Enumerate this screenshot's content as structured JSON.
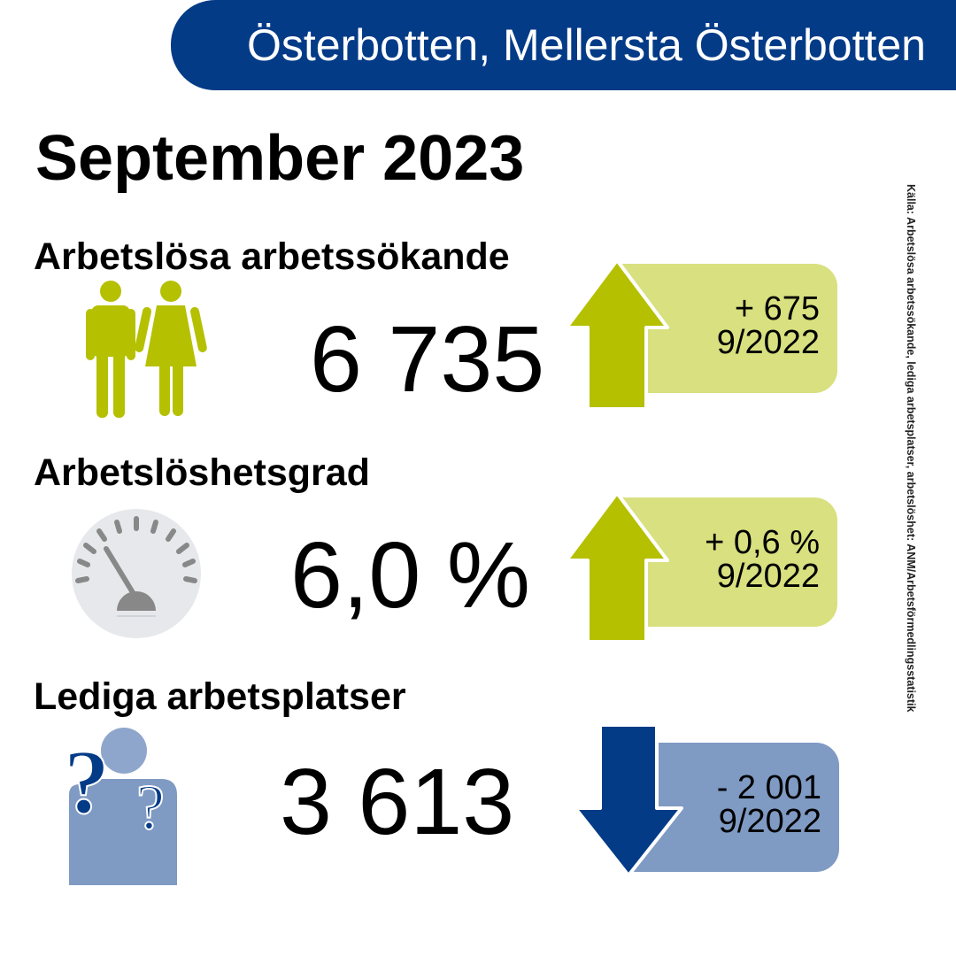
{
  "header": {
    "region": "Österbotten, Mellersta Österbotten"
  },
  "period": "September 2023",
  "metrics": [
    {
      "heading": "Arbetslösa arbetssökande",
      "value": "6 735",
      "change": "+ 675",
      "comparison": "9/2022",
      "direction": "up",
      "icon": "people-icon",
      "accent": "#b5c000",
      "badge_color": "#d8e07f"
    },
    {
      "heading": "Arbetslöshetsgrad",
      "value": "6,0 %",
      "change": "+ 0,6 %",
      "comparison": "9/2022",
      "direction": "up",
      "icon": "gauge-icon",
      "accent": "#b5c000",
      "badge_color": "#d8e07f"
    },
    {
      "heading": "Lediga arbetsplatser",
      "value": "3 613",
      "change": "- 2 001",
      "comparison": "9/2022",
      "direction": "down",
      "icon": "person-question-icon",
      "accent": "#033b87",
      "badge_color": "#7f9ac3"
    }
  ],
  "source": "Källa: Arbetslösa arbetssökande, lediga arbetsplatser, arbetslöshet: ANM/Arbetsförmedlingsstatistik"
}
